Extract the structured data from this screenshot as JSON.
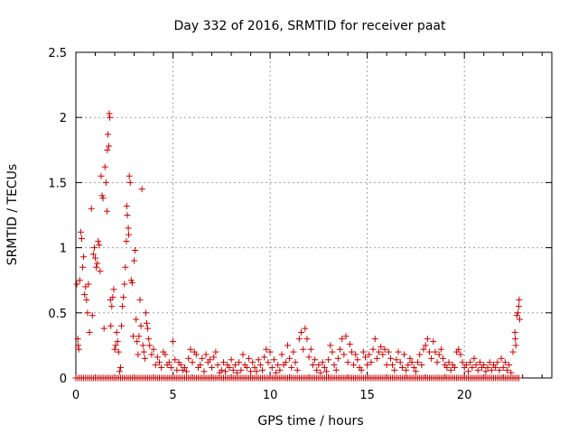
{
  "chart_data": {
    "type": "scatter",
    "title": "Day 332 of 2016, SRMTID for receiver paat",
    "xlabel": "GPS time / hours",
    "ylabel": "SRMTID / TECUs",
    "xlim": [
      0,
      24.5
    ],
    "ylim": [
      0,
      2.5
    ],
    "grid": true,
    "marker": "+",
    "color": "#cc0000",
    "x_ticks": [
      0,
      5,
      10,
      15,
      20
    ],
    "x_tick_labels": [
      "0",
      "5",
      "10",
      "15",
      "20"
    ],
    "y_ticks": [
      0,
      0.5,
      1,
      1.5,
      2,
      2.5
    ],
    "y_tick_labels": [
      "0",
      "0.5",
      "1",
      "1.5",
      "2",
      "2.5"
    ],
    "series": [
      {
        "name": "SRMTID",
        "points": [
          [
            0.05,
            0.72
          ],
          [
            0.1,
            0.3
          ],
          [
            0.12,
            0.25
          ],
          [
            0.15,
            0.22
          ],
          [
            0.2,
            0.75
          ],
          [
            0.25,
            1.12
          ],
          [
            0.3,
            1.07
          ],
          [
            0.35,
            0.85
          ],
          [
            0.4,
            0.93
          ],
          [
            0.45,
            0.64
          ],
          [
            0.5,
            0.7
          ],
          [
            0.55,
            0.6
          ],
          [
            0.6,
            0.5
          ],
          [
            0.65,
            0.72
          ],
          [
            0.7,
            0.35
          ],
          [
            0.8,
            1.3
          ],
          [
            0.85,
            0.48
          ],
          [
            0.9,
            0.95
          ],
          [
            0.95,
            1.0
          ],
          [
            1.0,
            0.92
          ],
          [
            1.05,
            0.85
          ],
          [
            1.1,
            0.88
          ],
          [
            1.15,
            1.05
          ],
          [
            1.2,
            1.02
          ],
          [
            1.25,
            0.82
          ],
          [
            1.3,
            1.55
          ],
          [
            1.35,
            1.4
          ],
          [
            1.4,
            1.38
          ],
          [
            1.45,
            0.38
          ],
          [
            1.5,
            1.62
          ],
          [
            1.55,
            1.5
          ],
          [
            1.6,
            1.28
          ],
          [
            1.62,
            1.75
          ],
          [
            1.65,
            1.87
          ],
          [
            1.7,
            1.78
          ],
          [
            1.72,
            2.03
          ],
          [
            1.75,
            2.0
          ],
          [
            1.78,
            0.6
          ],
          [
            1.8,
            0.4
          ],
          [
            1.85,
            0.55
          ],
          [
            1.9,
            0.62
          ],
          [
            1.95,
            0.68
          ],
          [
            2.0,
            0.22
          ],
          [
            2.05,
            0.25
          ],
          [
            2.1,
            0.35
          ],
          [
            2.15,
            0.28
          ],
          [
            2.2,
            0.2
          ],
          [
            2.25,
            0.05
          ],
          [
            2.3,
            0.08
          ],
          [
            2.35,
            0.4
          ],
          [
            2.4,
            0.55
          ],
          [
            2.45,
            0.62
          ],
          [
            2.5,
            0.72
          ],
          [
            2.55,
            0.85
          ],
          [
            2.6,
            1.05
          ],
          [
            2.62,
            1.32
          ],
          [
            2.65,
            1.25
          ],
          [
            2.7,
            1.15
          ],
          [
            2.72,
            1.1
          ],
          [
            2.75,
            1.55
          ],
          [
            2.8,
            1.5
          ],
          [
            2.85,
            0.75
          ],
          [
            2.9,
            0.73
          ],
          [
            2.95,
            0.32
          ],
          [
            3.0,
            0.9
          ],
          [
            3.05,
            0.98
          ],
          [
            3.1,
            0.45
          ],
          [
            3.15,
            0.28
          ],
          [
            3.2,
            0.18
          ],
          [
            3.25,
            0.32
          ],
          [
            3.3,
            0.6
          ],
          [
            3.35,
            0.4
          ],
          [
            3.4,
            1.45
          ],
          [
            3.45,
            0.25
          ],
          [
            3.5,
            0.2
          ],
          [
            3.55,
            0.15
          ],
          [
            3.6,
            0.5
          ],
          [
            3.65,
            0.42
          ],
          [
            3.7,
            0.38
          ],
          [
            3.75,
            0.3
          ],
          [
            3.8,
            0.25
          ],
          [
            3.9,
            0.18
          ],
          [
            4.0,
            0.22
          ],
          [
            4.1,
            0.1
          ],
          [
            4.2,
            0.16
          ],
          [
            4.3,
            0.12
          ],
          [
            4.4,
            0.08
          ],
          [
            4.5,
            0.2
          ],
          [
            4.6,
            0.18
          ],
          [
            4.7,
            0.1
          ],
          [
            4.8,
            0.12
          ],
          [
            4.9,
            0.08
          ],
          [
            5.0,
            0.28
          ],
          [
            5.1,
            0.14
          ],
          [
            5.2,
            0.06
          ],
          [
            5.3,
            0.12
          ],
          [
            5.4,
            0.1
          ],
          [
            5.5,
            0.06
          ],
          [
            5.6,
            0.08
          ],
          [
            5.7,
            0.05
          ],
          [
            5.8,
            0.15
          ],
          [
            5.9,
            0.22
          ],
          [
            6.0,
            0.12
          ],
          [
            6.1,
            0.2
          ],
          [
            6.2,
            0.18
          ],
          [
            6.3,
            0.08
          ],
          [
            6.4,
            0.1
          ],
          [
            6.5,
            0.15
          ],
          [
            6.6,
            0.05
          ],
          [
            6.7,
            0.18
          ],
          [
            6.8,
            0.12
          ],
          [
            6.9,
            0.14
          ],
          [
            7.0,
            0.08
          ],
          [
            7.1,
            0.16
          ],
          [
            7.2,
            0.2
          ],
          [
            7.3,
            0.1
          ],
          [
            7.4,
            0.04
          ],
          [
            7.5,
            0.06
          ],
          [
            7.6,
            0.12
          ],
          [
            7.7,
            0.05
          ],
          [
            7.8,
            0.1
          ],
          [
            7.9,
            0.08
          ],
          [
            8.0,
            0.14
          ],
          [
            8.1,
            0.06
          ],
          [
            8.2,
            0.1
          ],
          [
            8.3,
            0.04
          ],
          [
            8.4,
            0.12
          ],
          [
            8.5,
            0.06
          ],
          [
            8.6,
            0.18
          ],
          [
            8.7,
            0.1
          ],
          [
            8.8,
            0.08
          ],
          [
            8.9,
            0.15
          ],
          [
            9.0,
            0.05
          ],
          [
            9.1,
            0.12
          ],
          [
            9.2,
            0.08
          ],
          [
            9.3,
            0.05
          ],
          [
            9.4,
            0.14
          ],
          [
            9.5,
            0.1
          ],
          [
            9.6,
            0.06
          ],
          [
            9.7,
            0.16
          ],
          [
            9.8,
            0.22
          ],
          [
            9.9,
            0.12
          ],
          [
            10.0,
            0.2
          ],
          [
            10.1,
            0.08
          ],
          [
            10.2,
            0.14
          ],
          [
            10.3,
            0.04
          ],
          [
            10.4,
            0.1
          ],
          [
            10.5,
            0.06
          ],
          [
            10.6,
            0.18
          ],
          [
            10.7,
            0.1
          ],
          [
            10.8,
            0.12
          ],
          [
            10.9,
            0.25
          ],
          [
            11.0,
            0.15
          ],
          [
            11.1,
            0.08
          ],
          [
            11.2,
            0.2
          ],
          [
            11.3,
            0.12
          ],
          [
            11.4,
            0.06
          ],
          [
            11.5,
            0.3
          ],
          [
            11.6,
            0.35
          ],
          [
            11.7,
            0.22
          ],
          [
            11.8,
            0.38
          ],
          [
            11.9,
            0.3
          ],
          [
            12.0,
            0.16
          ],
          [
            12.1,
            0.22
          ],
          [
            12.2,
            0.1
          ],
          [
            12.3,
            0.14
          ],
          [
            12.4,
            0.06
          ],
          [
            12.5,
            0.1
          ],
          [
            12.6,
            0.04
          ],
          [
            12.7,
            0.12
          ],
          [
            12.8,
            0.08
          ],
          [
            12.9,
            0.05
          ],
          [
            13.0,
            0.14
          ],
          [
            13.1,
            0.25
          ],
          [
            13.2,
            0.2
          ],
          [
            13.3,
            0.1
          ],
          [
            13.4,
            0.06
          ],
          [
            13.5,
            0.15
          ],
          [
            13.6,
            0.22
          ],
          [
            13.7,
            0.3
          ],
          [
            13.8,
            0.18
          ],
          [
            13.9,
            0.32
          ],
          [
            14.0,
            0.12
          ],
          [
            14.1,
            0.26
          ],
          [
            14.2,
            0.2
          ],
          [
            14.3,
            0.1
          ],
          [
            14.4,
            0.18
          ],
          [
            14.5,
            0.14
          ],
          [
            14.6,
            0.08
          ],
          [
            14.7,
            0.06
          ],
          [
            14.8,
            0.2
          ],
          [
            14.9,
            0.16
          ],
          [
            15.0,
            0.1
          ],
          [
            15.1,
            0.18
          ],
          [
            15.2,
            0.12
          ],
          [
            15.3,
            0.22
          ],
          [
            15.4,
            0.3
          ],
          [
            15.5,
            0.15
          ],
          [
            15.6,
            0.2
          ],
          [
            15.7,
            0.24
          ],
          [
            15.8,
            0.18
          ],
          [
            15.9,
            0.22
          ],
          [
            16.0,
            0.1
          ],
          [
            16.1,
            0.2
          ],
          [
            16.2,
            0.15
          ],
          [
            16.3,
            0.1
          ],
          [
            16.4,
            0.06
          ],
          [
            16.5,
            0.14
          ],
          [
            16.6,
            0.2
          ],
          [
            16.7,
            0.12
          ],
          [
            16.8,
            0.08
          ],
          [
            16.9,
            0.18
          ],
          [
            17.0,
            0.06
          ],
          [
            17.1,
            0.1
          ],
          [
            17.2,
            0.15
          ],
          [
            17.3,
            0.12
          ],
          [
            17.4,
            0.08
          ],
          [
            17.5,
            0.05
          ],
          [
            17.6,
            0.12
          ],
          [
            17.7,
            0.18
          ],
          [
            17.8,
            0.1
          ],
          [
            17.9,
            0.22
          ],
          [
            18.0,
            0.25
          ],
          [
            18.1,
            0.3
          ],
          [
            18.2,
            0.2
          ],
          [
            18.3,
            0.15
          ],
          [
            18.4,
            0.28
          ],
          [
            18.5,
            0.2
          ],
          [
            18.6,
            0.12
          ],
          [
            18.7,
            0.18
          ],
          [
            18.8,
            0.22
          ],
          [
            18.9,
            0.15
          ],
          [
            19.0,
            0.1
          ],
          [
            19.1,
            0.08
          ],
          [
            19.2,
            0.12
          ],
          [
            19.3,
            0.06
          ],
          [
            19.4,
            0.1
          ],
          [
            19.5,
            0.08
          ],
          [
            19.6,
            0.2
          ],
          [
            19.7,
            0.22
          ],
          [
            19.8,
            0.18
          ],
          [
            19.9,
            0.12
          ],
          [
            20.0,
            0.08
          ],
          [
            20.1,
            0.1
          ],
          [
            20.2,
            0.05
          ],
          [
            20.3,
            0.12
          ],
          [
            20.4,
            0.08
          ],
          [
            20.5,
            0.15
          ],
          [
            20.6,
            0.1
          ],
          [
            20.7,
            0.06
          ],
          [
            20.8,
            0.12
          ],
          [
            20.9,
            0.08
          ],
          [
            21.0,
            0.1
          ],
          [
            21.1,
            0.05
          ],
          [
            21.2,
            0.08
          ],
          [
            21.3,
            0.12
          ],
          [
            21.4,
            0.06
          ],
          [
            21.5,
            0.1
          ],
          [
            21.6,
            0.08
          ],
          [
            21.7,
            0.12
          ],
          [
            21.8,
            0.06
          ],
          [
            21.9,
            0.15
          ],
          [
            22.0,
            0.08
          ],
          [
            22.1,
            0.12
          ],
          [
            22.2,
            0.06
          ],
          [
            22.3,
            0.1
          ],
          [
            22.4,
            0.04
          ],
          [
            22.5,
            0.2
          ],
          [
            22.6,
            0.35
          ],
          [
            22.62,
            0.3
          ],
          [
            22.65,
            0.25
          ],
          [
            22.7,
            0.48
          ],
          [
            22.75,
            0.5
          ],
          [
            22.8,
            0.55
          ],
          [
            22.82,
            0.6
          ],
          [
            22.85,
            0.45
          ]
        ],
        "zero_points_range": [
          0,
          22.8
        ],
        "zero_points_step": 0.1
      }
    ]
  }
}
